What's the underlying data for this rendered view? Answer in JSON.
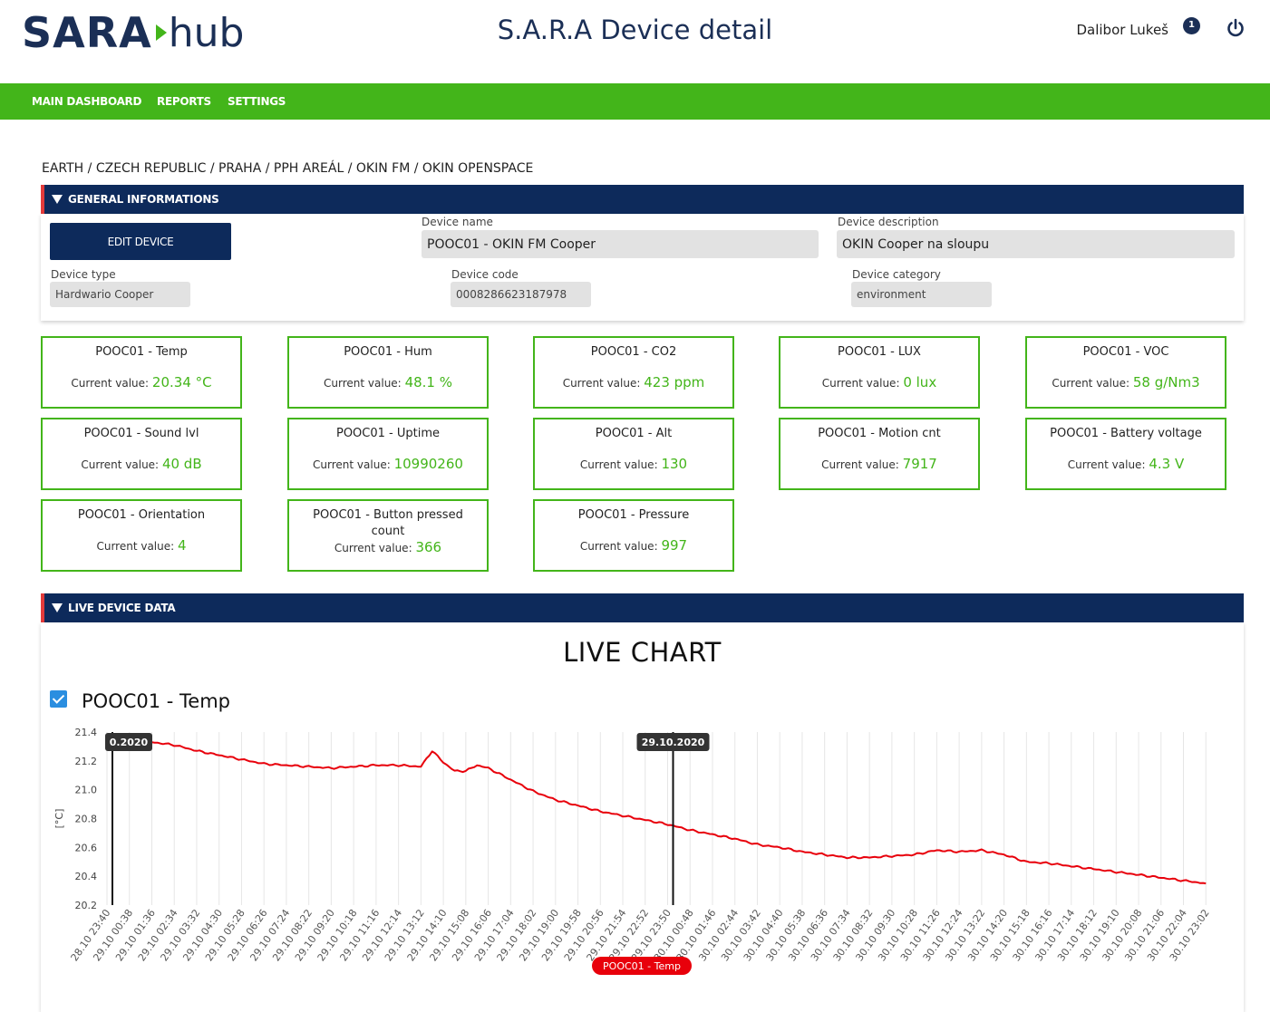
{
  "header": {
    "logo_primary": "SARA",
    "logo_secondary": "hub",
    "title": "S.A.R.A Device detail",
    "user_name": "Dalibor Lukeš",
    "notification_count": "1"
  },
  "nav": {
    "items": [
      "MAIN DASHBOARD",
      "REPORTS",
      "SETTINGS"
    ]
  },
  "breadcrumb": "EARTH / CZECH REPUBLIC / PRAHA / PPH AREÁL / OKIN FM / OKIN OPENSPACE",
  "general": {
    "section_title": "GENERAL INFORMATIONS",
    "edit_button": "EDIT DEVICE",
    "device_name_label": "Device name",
    "device_name": "POOC01 - OKIN FM Cooper",
    "device_description_label": "Device description",
    "device_description": "OKIN Cooper na sloupu",
    "device_type_label": "Device type",
    "device_type": "Hardwario Cooper",
    "device_code_label": "Device code",
    "device_code": "0008286623187978",
    "device_category_label": "Device category",
    "device_category": "environment"
  },
  "sensor_cards": {
    "current_value_label": "Current value:",
    "items": [
      {
        "title": "POOC01 - Temp",
        "value": "20.34 °C"
      },
      {
        "title": "POOC01 - Hum",
        "value": "48.1 %"
      },
      {
        "title": "POOC01 - CO2",
        "value": "423 ppm"
      },
      {
        "title": "POOC01 - LUX",
        "value": "0 lux"
      },
      {
        "title": "POOC01 - VOC",
        "value": "58 g/Nm3"
      },
      {
        "title": "POOC01 - Sound lvl",
        "value": "40 dB"
      },
      {
        "title": "POOC01 - Uptime",
        "value": "10990260"
      },
      {
        "title": "POOC01 - Alt",
        "value": "130"
      },
      {
        "title": "POOC01 - Motion cnt",
        "value": "7917"
      },
      {
        "title": "POOC01 - Battery voltage",
        "value": "4.3 V"
      },
      {
        "title": "POOC01 - Orientation",
        "value": "4"
      },
      {
        "title": "POOC01 - Button pressed count",
        "value": "366"
      },
      {
        "title": "POOC01 - Pressure",
        "value": "997"
      }
    ]
  },
  "live": {
    "section_title": "LIVE DEVICE DATA",
    "chart_heading": "LIVE CHART",
    "series_checkbox_label": "POOC01 - Temp"
  },
  "colors": {
    "brand_navy": "#0d2a5b",
    "brand_green": "#43b51a",
    "series_red": "#e8000b"
  },
  "chart_data": {
    "type": "line",
    "ylabel": "[°C]",
    "ylim": [
      20.2,
      21.4
    ],
    "yticks": [
      20.2,
      20.4,
      20.6,
      20.8,
      21.0,
      21.2,
      21.4
    ],
    "grid": true,
    "legend_position": "bottom-center",
    "x_tick_labels": [
      "28.10 23:40",
      "29.10 00:38",
      "29.10 01:36",
      "29.10 02:34",
      "29.10 03:32",
      "29.10 04:30",
      "29.10 05:28",
      "29.10 06:26",
      "29.10 07:24",
      "29.10 08:22",
      "29.10 09:20",
      "29.10 10:18",
      "29.10 11:16",
      "29.10 12:14",
      "29.10 13:12",
      "29.10 14:10",
      "29.10 15:08",
      "29.10 16:06",
      "29.10 17:04",
      "29.10 18:02",
      "29.10 19:00",
      "29.10 19:58",
      "29.10 20:56",
      "29.10 21:54",
      "29.10 22:52",
      "29.10 23:50",
      "30.10 00:48",
      "30.10 01:46",
      "30.10 02:44",
      "30.10 03:42",
      "30.10 04:40",
      "30.10 05:38",
      "30.10 06:36",
      "30.10 07:34",
      "30.10 08:32",
      "30.10 09:30",
      "30.10 10:28",
      "30.10 11:26",
      "30.10 12:24",
      "30.10 13:22",
      "30.10 14:20",
      "30.10 15:18",
      "30.10 16:16",
      "30.10 17:14",
      "30.10 18:12",
      "30.10 19:10",
      "30.10 20:08",
      "30.10 21:06",
      "30.10 22:04",
      "30.10 23:02"
    ],
    "markers": [
      {
        "at_tick": 0,
        "label": "0.2020"
      },
      {
        "at_tick": 25,
        "label": "29.10.2020"
      }
    ],
    "series": [
      {
        "name": "POOC01 - Temp",
        "color": "#e8000b",
        "x_index": [
          0,
          1,
          2,
          3,
          4,
          5,
          6,
          7,
          8,
          9,
          10,
          11,
          12,
          13,
          14,
          14.5,
          15,
          15.5,
          16,
          16.5,
          17,
          18,
          19,
          20,
          21,
          22,
          23,
          24,
          25,
          26,
          27,
          28,
          29,
          30,
          31,
          32,
          33,
          34,
          35,
          36,
          37,
          38,
          39,
          40,
          41,
          42,
          43,
          44,
          45,
          46,
          47,
          48,
          49
        ],
        "values": [
          21.38,
          21.35,
          21.33,
          21.31,
          21.27,
          21.24,
          21.21,
          21.18,
          21.17,
          21.16,
          21.15,
          21.16,
          21.17,
          21.17,
          21.16,
          21.27,
          21.19,
          21.13,
          21.13,
          21.17,
          21.15,
          21.07,
          20.99,
          20.93,
          20.89,
          20.85,
          20.82,
          20.79,
          20.76,
          20.72,
          20.69,
          20.66,
          20.62,
          20.6,
          20.57,
          20.55,
          20.53,
          20.53,
          20.54,
          20.55,
          20.58,
          20.57,
          20.58,
          20.55,
          20.5,
          20.49,
          20.47,
          20.45,
          20.43,
          20.41,
          20.39,
          20.37,
          20.35
        ]
      }
    ]
  }
}
